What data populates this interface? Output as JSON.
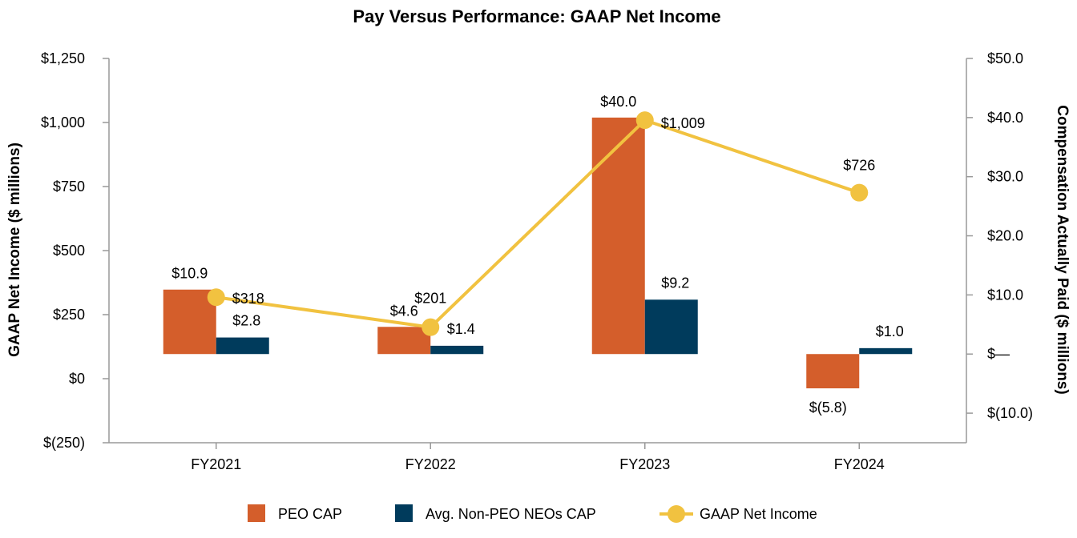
{
  "chart_data": {
    "type": "bar",
    "title": "Pay Versus Performance: GAAP Net Income",
    "categories": [
      "FY2021",
      "FY2022",
      "FY2023",
      "FY2024"
    ],
    "ylabel_left": "GAAP Net Income ($ millions)",
    "ylabel_right": "Compensation Actually Paid ($ millions)",
    "y_left": {
      "range": [
        -250,
        1250
      ],
      "ticks": [
        1250,
        1000,
        750,
        500,
        250,
        0,
        -250
      ],
      "tick_labels": [
        "$1,250",
        "$1,000",
        "$750",
        "$500",
        "$250",
        "$0",
        "$(250)"
      ]
    },
    "y_right": {
      "range": [
        -15,
        50
      ],
      "ticks": [
        50,
        40,
        30,
        20,
        10,
        0,
        -10
      ],
      "tick_labels": [
        "$50.0",
        "$40.0",
        "$30.0",
        "$20.0",
        "$10.0",
        "$—",
        "$(10.0)"
      ]
    },
    "series": [
      {
        "name": "PEO CAP",
        "type": "bar",
        "axis": "right",
        "color": "#D45E2B",
        "values": [
          10.9,
          4.6,
          40.0,
          -5.8
        ],
        "labels": [
          "$10.9",
          "$4.6",
          "$40.0",
          "$(5.8)"
        ]
      },
      {
        "name": "Avg. Non-PEO NEOs CAP",
        "type": "bar",
        "axis": "right",
        "color": "#003B5C",
        "values": [
          2.8,
          1.4,
          9.2,
          1.0
        ],
        "labels": [
          "$2.8",
          "$1.4",
          "$9.2",
          "$1.0"
        ]
      },
      {
        "name": "GAAP Net Income",
        "type": "line",
        "axis": "left",
        "color": "#F1C240",
        "values": [
          318,
          201,
          1009,
          726
        ],
        "labels": [
          "$318",
          "$201",
          "$1,009",
          "$726"
        ]
      }
    ],
    "legend": {
      "placement": "bottom-center",
      "entries": [
        "PEO CAP",
        "Avg. Non-PEO NEOs CAP",
        "GAAP Net Income"
      ]
    },
    "grid": false
  }
}
